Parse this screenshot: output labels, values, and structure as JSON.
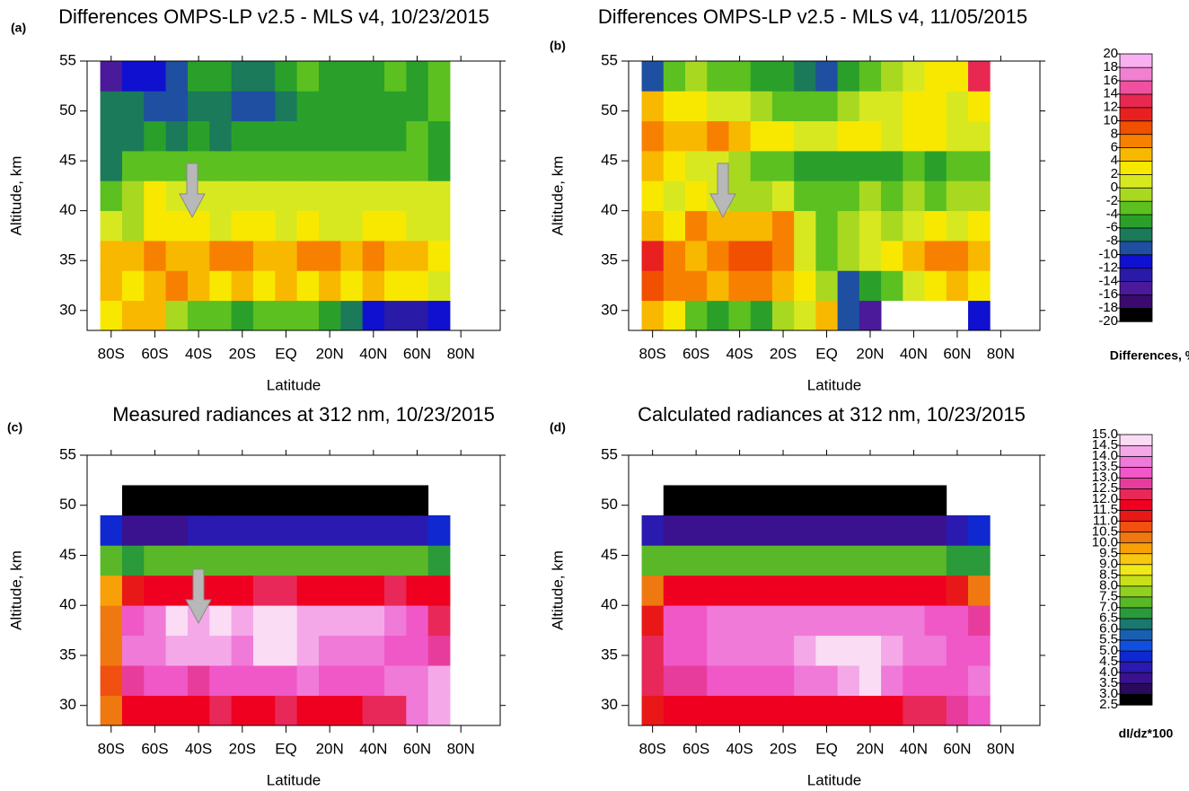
{
  "chart_data": [
    {
      "type": "heatmap",
      "panel": "(a)",
      "title": "Differences OMPS-LP v2.5 - MLS v4, 10/23/2015",
      "xlabel": "Latitude",
      "ylabel": "Altitude, km",
      "xlim": [
        -91,
        98
      ],
      "ylim": [
        28,
        55
      ],
      "xticks": [
        {
          "value": -80,
          "label": "80S"
        },
        {
          "value": -60,
          "label": "60S"
        },
        {
          "value": -40,
          "label": "40S"
        },
        {
          "value": -20,
          "label": "20S"
        },
        {
          "value": 0,
          "label": "EQ"
        },
        {
          "value": 20,
          "label": "20N"
        },
        {
          "value": 40,
          "label": "40N"
        },
        {
          "value": 60,
          "label": "60N"
        },
        {
          "value": 80,
          "label": "80N"
        }
      ],
      "yticks": [
        30,
        35,
        40,
        45,
        50,
        55
      ],
      "x": [
        -80,
        -70,
        -60,
        -50,
        -40,
        -30,
        -20,
        -10,
        0,
        10,
        20,
        30,
        40,
        50,
        60,
        70
      ],
      "y": [
        29.5,
        32.5,
        35.5,
        38.5,
        41.5,
        44.5,
        47.5,
        50.5,
        53.5
      ],
      "values": [
        [
          2,
          4,
          4,
          -2,
          -4,
          -4,
          -6,
          -4,
          -4,
          -4,
          -6,
          -8,
          -12,
          -14,
          -14,
          -12
        ],
        [
          4,
          2,
          4,
          6,
          4,
          2,
          4,
          2,
          4,
          2,
          4,
          2,
          4,
          2,
          2,
          0
        ],
        [
          4,
          4,
          6,
          4,
          4,
          6,
          6,
          4,
          4,
          6,
          6,
          4,
          6,
          4,
          4,
          2
        ],
        [
          0,
          -2,
          2,
          2,
          2,
          0,
          2,
          2,
          0,
          2,
          0,
          0,
          2,
          2,
          0,
          0
        ],
        [
          -4,
          -2,
          2,
          0,
          0,
          0,
          0,
          0,
          0,
          0,
          0,
          0,
          0,
          0,
          0,
          0
        ],
        [
          -8,
          -4,
          -4,
          -4,
          -4,
          -4,
          -4,
          -4,
          -4,
          -4,
          -4,
          -4,
          -4,
          -4,
          -4,
          -6
        ],
        [
          -8,
          -8,
          -6,
          -8,
          -6,
          -8,
          -6,
          -6,
          -6,
          -6,
          -6,
          -6,
          -6,
          -6,
          -4,
          -6
        ],
        [
          -8,
          -8,
          -10,
          -10,
          -8,
          -8,
          -10,
          -10,
          -8,
          -6,
          -6,
          -6,
          -6,
          -6,
          -6,
          -4
        ],
        [
          -16,
          -12,
          -12,
          -10,
          -6,
          -6,
          -8,
          -8,
          -6,
          -4,
          -6,
          -6,
          -6,
          -4,
          -6,
          -4
        ]
      ]
    },
    {
      "type": "heatmap",
      "panel": "(b)",
      "title": "Differences OMPS-LP v2.5 - MLS v4, 11/05/2015",
      "xlabel": "Latitude",
      "ylabel": "Altitude, km",
      "xlim": [
        -91,
        98
      ],
      "ylim": [
        28,
        55
      ],
      "xticks": [
        {
          "value": -80,
          "label": "80S"
        },
        {
          "value": -60,
          "label": "60S"
        },
        {
          "value": -40,
          "label": "40S"
        },
        {
          "value": -20,
          "label": "20S"
        },
        {
          "value": 0,
          "label": "EQ"
        },
        {
          "value": 20,
          "label": "20N"
        },
        {
          "value": 40,
          "label": "40N"
        },
        {
          "value": 60,
          "label": "60N"
        },
        {
          "value": 80,
          "label": "80N"
        }
      ],
      "yticks": [
        30,
        35,
        40,
        45,
        50,
        55
      ],
      "x": [
        -80,
        -70,
        -60,
        -50,
        -40,
        -30,
        -20,
        -10,
        0,
        10,
        20,
        30,
        40,
        50,
        60,
        70
      ],
      "y": [
        29.5,
        32.5,
        35.5,
        38.5,
        41.5,
        44.5,
        47.5,
        50.5,
        53.5
      ],
      "values": [
        [
          4,
          2,
          -4,
          -6,
          -4,
          -6,
          -2,
          0,
          4,
          -10,
          -16,
          null,
          null,
          null,
          null,
          -12
        ],
        [
          8,
          6,
          6,
          4,
          6,
          6,
          4,
          2,
          -2,
          -10,
          -6,
          -4,
          0,
          2,
          4,
          2
        ],
        [
          10,
          6,
          4,
          6,
          8,
          8,
          6,
          0,
          -4,
          -2,
          0,
          2,
          4,
          6,
          6,
          4
        ],
        [
          4,
          2,
          6,
          4,
          4,
          4,
          6,
          0,
          -4,
          -2,
          0,
          -2,
          0,
          2,
          0,
          2
        ],
        [
          2,
          0,
          2,
          0,
          -2,
          -2,
          0,
          -4,
          -4,
          -4,
          -2,
          -4,
          -2,
          -4,
          -2,
          -2
        ],
        [
          4,
          2,
          0,
          0,
          -2,
          -4,
          -4,
          -6,
          -6,
          -6,
          -6,
          -6,
          -4,
          -6,
          -4,
          -4
        ],
        [
          6,
          4,
          4,
          6,
          4,
          2,
          2,
          0,
          0,
          2,
          2,
          0,
          2,
          2,
          0,
          0
        ],
        [
          4,
          2,
          2,
          0,
          0,
          -2,
          -4,
          -4,
          -4,
          -2,
          0,
          0,
          2,
          2,
          0,
          2
        ],
        [
          -10,
          -4,
          -2,
          -4,
          -4,
          -6,
          -6,
          -8,
          -10,
          -6,
          -4,
          -2,
          0,
          2,
          2,
          12
        ]
      ]
    },
    {
      "type": "heatmap",
      "panel": "(c)",
      "title": "Measured radiances at 312 nm, 10/23/2015",
      "xlabel": "Latitude",
      "ylabel": "Altitude, km",
      "xlim": [
        -91,
        98
      ],
      "ylim": [
        28,
        55
      ],
      "xticks": [
        {
          "value": -80,
          "label": "80S"
        },
        {
          "value": -60,
          "label": "60S"
        },
        {
          "value": -40,
          "label": "40S"
        },
        {
          "value": -20,
          "label": "20S"
        },
        {
          "value": 0,
          "label": "EQ"
        },
        {
          "value": 20,
          "label": "20N"
        },
        {
          "value": 40,
          "label": "40N"
        },
        {
          "value": 60,
          "label": "60N"
        },
        {
          "value": 80,
          "label": "80N"
        }
      ],
      "yticks": [
        30,
        35,
        40,
        45,
        50,
        55
      ],
      "x": [
        -80,
        -70,
        -60,
        -50,
        -40,
        -30,
        -20,
        -10,
        0,
        10,
        20,
        30,
        40,
        50,
        60,
        70
      ],
      "y": [
        29.5,
        32.5,
        35.5,
        38.5,
        41.5,
        44.5,
        47.5,
        50.5,
        53.5
      ],
      "values": [
        [
          10,
          11.5,
          11.5,
          11.5,
          11.5,
          12,
          11.5,
          11.5,
          12,
          11.5,
          11.5,
          11.5,
          12,
          12,
          13.5,
          14
        ],
        [
          10.5,
          12.5,
          13,
          13,
          12.5,
          13,
          13,
          13,
          13,
          13.5,
          13,
          13,
          13,
          13.5,
          13.5,
          14
        ],
        [
          10,
          13.5,
          13.5,
          14,
          14,
          14,
          13.5,
          14.5,
          14.5,
          14,
          13.5,
          13.5,
          13.5,
          13,
          13,
          12.5
        ],
        [
          10,
          13,
          13.5,
          14.5,
          14,
          14.5,
          14,
          14.5,
          15,
          14,
          14,
          14,
          14,
          13.5,
          13,
          12
        ],
        [
          9.5,
          11,
          11.5,
          11.5,
          11.5,
          11.5,
          11.5,
          12,
          12,
          11.5,
          11.5,
          11.5,
          11.5,
          12,
          11.5,
          11.5
        ],
        [
          7,
          6.5,
          7,
          7,
          7,
          7,
          7,
          7,
          7,
          7,
          7,
          7,
          7,
          7,
          7,
          6.5
        ],
        [
          4.5,
          3.5,
          3.5,
          3.5,
          4,
          4,
          4,
          4,
          4,
          4,
          4,
          4,
          4,
          4,
          4,
          4.5
        ],
        [
          null,
          2.7,
          2.7,
          2.7,
          2.7,
          2.7,
          2.7,
          2.7,
          2.7,
          2.7,
          2.7,
          2.7,
          2.7,
          2.7,
          2.7,
          null
        ],
        [
          null,
          null,
          null,
          null,
          null,
          null,
          null,
          null,
          null,
          null,
          null,
          null,
          null,
          null,
          null,
          null
        ]
      ]
    },
    {
      "type": "heatmap",
      "panel": "(d)",
      "title": "Calculated radiances at 312 nm, 10/23/2015",
      "xlabel": "Latitude",
      "ylabel": "Altitude, km",
      "xlim": [
        -91,
        98
      ],
      "ylim": [
        28,
        55
      ],
      "xticks": [
        {
          "value": -80,
          "label": "80S"
        },
        {
          "value": -60,
          "label": "60S"
        },
        {
          "value": -40,
          "label": "40S"
        },
        {
          "value": -20,
          "label": "20S"
        },
        {
          "value": 0,
          "label": "EQ"
        },
        {
          "value": 20,
          "label": "20N"
        },
        {
          "value": 40,
          "label": "40N"
        },
        {
          "value": 60,
          "label": "60N"
        },
        {
          "value": 80,
          "label": "80N"
        }
      ],
      "yticks": [
        30,
        35,
        40,
        45,
        50,
        55
      ],
      "x": [
        -80,
        -70,
        -60,
        -50,
        -40,
        -30,
        -20,
        -10,
        0,
        10,
        20,
        30,
        40,
        50,
        60,
        70
      ],
      "y": [
        29.5,
        32.5,
        35.5,
        38.5,
        41.5,
        44.5,
        47.5,
        50.5,
        53.5
      ],
      "values": [
        [
          11,
          11.5,
          11.5,
          11.5,
          11.5,
          11.5,
          11.5,
          11.5,
          11.5,
          11.5,
          11.5,
          11.5,
          12,
          12,
          12.5,
          13
        ],
        [
          12,
          12.5,
          12.5,
          13,
          13,
          13,
          13,
          13.5,
          13.5,
          14,
          14.5,
          13.5,
          13,
          13,
          13,
          13.5
        ],
        [
          12,
          13,
          13,
          13.5,
          13.5,
          13.5,
          13.5,
          14,
          15,
          15,
          14.5,
          14,
          13.5,
          13.5,
          13,
          13
        ],
        [
          11,
          13,
          13,
          13.5,
          13.5,
          13.5,
          13.5,
          13.5,
          13.5,
          13.5,
          13.5,
          13.5,
          13.5,
          13,
          13,
          12.5
        ],
        [
          10,
          11.5,
          11.5,
          11.5,
          11.5,
          11.5,
          11.5,
          11.5,
          11.5,
          11.5,
          11.5,
          11.5,
          11.5,
          11.5,
          11,
          10
        ],
        [
          7,
          7,
          7,
          7,
          7,
          7,
          7,
          7,
          7,
          7,
          7,
          7,
          7,
          7,
          6.5,
          6.5
        ],
        [
          4,
          3.5,
          3.5,
          3.5,
          3.5,
          3.5,
          3.5,
          3.5,
          3.5,
          3.5,
          3.5,
          3.5,
          3.5,
          3.5,
          4,
          4.5
        ],
        [
          null,
          2.7,
          2.7,
          2.7,
          2.7,
          2.7,
          2.7,
          2.7,
          2.7,
          2.7,
          2.7,
          2.7,
          2.7,
          2.7,
          null,
          null
        ],
        [
          null,
          null,
          null,
          null,
          null,
          null,
          null,
          null,
          null,
          null,
          null,
          null,
          null,
          null,
          null,
          null
        ]
      ]
    },
    {
      "type": "colorbar",
      "label": "Differences, %",
      "levels": [
        -20,
        -18,
        -16,
        -14,
        -12,
        -10,
        -8,
        -6,
        -4,
        -2,
        0,
        2,
        4,
        6,
        8,
        10,
        12,
        14,
        16,
        18,
        20
      ],
      "colors": [
        "#000000",
        "#3b0a6e",
        "#4a1a9a",
        "#2a1aa8",
        "#1010d0",
        "#1f4fa0",
        "#1a7a5a",
        "#2aa02a",
        "#5cc020",
        "#a8d820",
        "#d8e820",
        "#f8e800",
        "#f8b800",
        "#f88000",
        "#f05000",
        "#e82020",
        "#e82850",
        "#f050a0",
        "#f080d0",
        "#f8b0f0"
      ]
    },
    {
      "type": "colorbar",
      "label": "dI/dz*100",
      "levels": [
        2.5,
        {
          "value": 3,
          "label": "3.0"
        },
        3.5,
        {
          "value": 4,
          "label": "4.0"
        },
        4.5,
        {
          "value": 5,
          "label": "5.0"
        },
        5.5,
        {
          "value": 6,
          "label": "6.0"
        },
        6.5,
        {
          "value": 7,
          "label": "7.0"
        },
        7.5,
        {
          "value": 8,
          "label": "8.0"
        },
        8.5,
        {
          "value": 9,
          "label": "9.0"
        },
        9.5,
        {
          "value": 10,
          "label": "10.0"
        },
        10.5,
        {
          "value": 11,
          "label": "11.0"
        },
        11.5,
        {
          "value": 12,
          "label": "12.0"
        },
        12.5,
        {
          "value": 13,
          "label": "13.0"
        },
        13.5,
        {
          "value": 14,
          "label": "14.0"
        },
        14.5,
        {
          "value": 15,
          "label": "15.0"
        }
      ],
      "colors": [
        "#000000",
        "#2a0a5a",
        "#3a1290",
        "#2a1ab0",
        "#1028d0",
        "#1050e0",
        "#1a60b0",
        "#1a7870",
        "#2a9a3a",
        "#5ab828",
        "#90d020",
        "#c8e018",
        "#f0e818",
        "#f8c810",
        "#f8a008",
        "#f07810",
        "#f05010",
        "#e81818",
        "#f00020",
        "#e82858",
        "#e83c9c",
        "#f058c8",
        "#f07ad8",
        "#f4a8e8",
        "#fadcf4"
      ]
    }
  ]
}
